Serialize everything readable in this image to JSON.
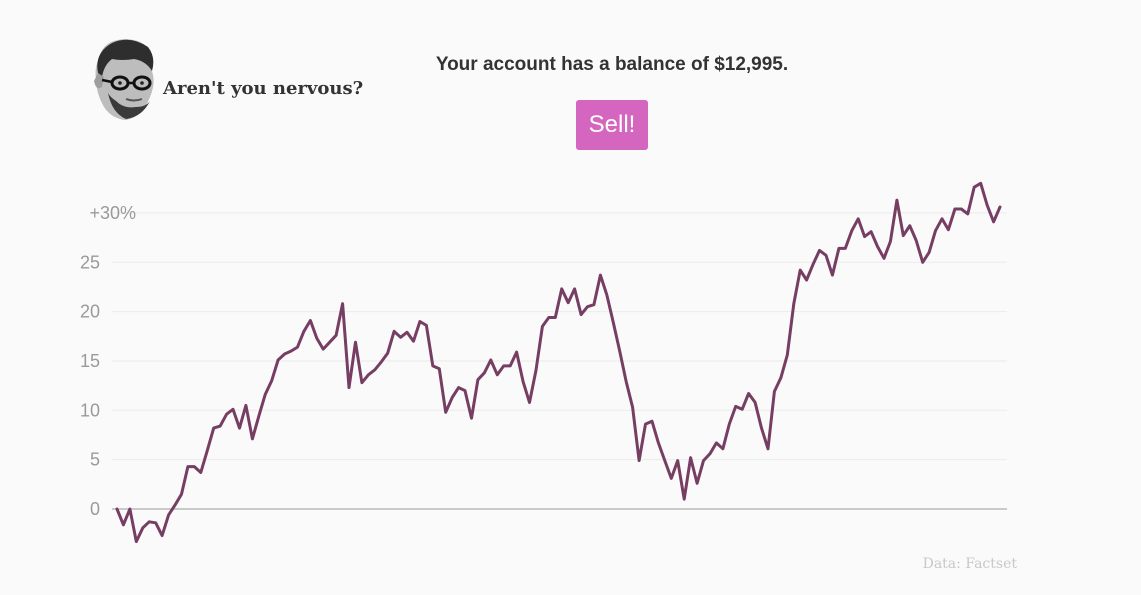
{
  "header": {
    "speech": "Aren't you nervous?",
    "balance_text": "Your account has a balance of $12,995.",
    "sell_label": "Sell!"
  },
  "colors": {
    "line": "#763e63",
    "button": "#d466bf",
    "grid": "#ebebeb",
    "axis": "#999999"
  },
  "chart_data": {
    "type": "line",
    "title": "",
    "xlabel": "",
    "ylabel": "",
    "ylim": [
      -4,
      35
    ],
    "yticks": [
      0,
      5,
      10,
      15,
      20,
      25,
      30
    ],
    "ytick_labels": [
      "0",
      "5",
      "10",
      "15",
      "20",
      "25",
      "+30%"
    ],
    "grid": true,
    "series": [
      {
        "values": [
          0,
          -1.6,
          0,
          -3.3,
          -1.9,
          -1.3,
          -1.4,
          -2.7,
          -0.6,
          0.4,
          1.5,
          4.3,
          4.3,
          3.7,
          5.9,
          8.2,
          8.4,
          9.6,
          10.1,
          8.2,
          10.5,
          7.1,
          9.4,
          11.6,
          13.0,
          15.1,
          15.7,
          16.0,
          16.4,
          18.0,
          19.1,
          17.3,
          16.2,
          16.9,
          17.6,
          20.8,
          12.3,
          16.9,
          12.8,
          13.6,
          14.1,
          14.9,
          15.8,
          18.0,
          17.4,
          17.9,
          17.0,
          19.0,
          18.6,
          14.5,
          14.2,
          9.8,
          11.3,
          12.3,
          12.0,
          9.2,
          13.1,
          13.8,
          15.1,
          13.6,
          14.5,
          14.5,
          15.9,
          12.9,
          10.8,
          14.0,
          18.5,
          19.4,
          19.4,
          22.3,
          20.9,
          22.3,
          19.7,
          20.5,
          20.7,
          23.7,
          21.7,
          18.9,
          16.0,
          12.9,
          10.3,
          4.9,
          8.6,
          8.9,
          6.7,
          4.9,
          3.1,
          4.9,
          1.0,
          5.2,
          2.6,
          4.9,
          5.6,
          6.7,
          6.1,
          8.6,
          10.4,
          10.1,
          11.7,
          10.8,
          8.2,
          6.1,
          11.9,
          13.3,
          15.6,
          20.8,
          24.2,
          23.2,
          24.8,
          26.2,
          25.7,
          23.7,
          26.4,
          26.4,
          28.2,
          29.4,
          27.6,
          28.1,
          26.6,
          25.4,
          27.1,
          31.3,
          27.7,
          28.7,
          27.2,
          25.0,
          26.0,
          28.2,
          29.4,
          28.3,
          30.4,
          30.4,
          29.9,
          32.6,
          33.0,
          30.8,
          29.1,
          30.6
        ]
      }
    ],
    "source": "Data: Factset"
  }
}
